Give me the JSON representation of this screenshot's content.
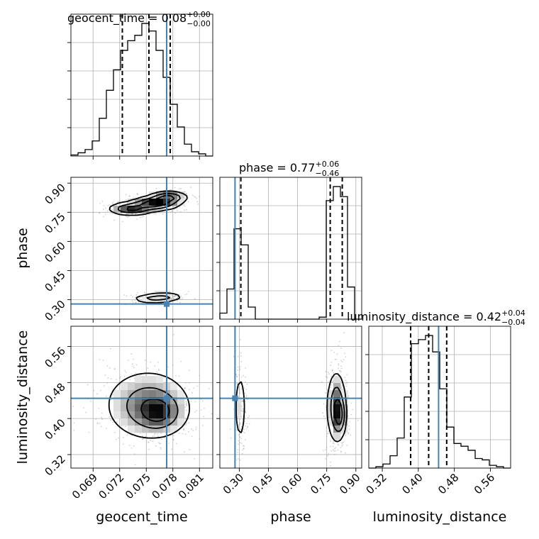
{
  "parameters": [
    "geocent_time",
    "phase",
    "luminosity_distance"
  ],
  "injection": {
    "geocent_time": 0.0773,
    "phase": 0.278,
    "luminosity_distance": 0.445
  },
  "colors": {
    "truth": "#4682b4",
    "density": "#000000",
    "grid": "#b0b0b0"
  },
  "chart_data": {
    "type": "corner",
    "titles": [
      {
        "param": "geocent_time",
        "text": "geocent_time = 0.08",
        "sup": "+0.00",
        "sub": "−0.00"
      },
      {
        "param": "phase",
        "text": "phase = 0.77",
        "sup": "+0.06",
        "sub": "−0.46"
      },
      {
        "param": "luminosity_distance",
        "text": "luminosity_distance = 0.42",
        "sup": "+0.04",
        "sub": "−0.04"
      }
    ],
    "axes": {
      "geocent_time": {
        "label": "geocent_time",
        "range": [
          0.0665,
          0.0825
        ],
        "ticks": [
          0.069,
          0.072,
          0.075,
          0.078,
          0.081
        ],
        "tick_labels": [
          "0.069",
          "0.072",
          "0.075",
          "0.078",
          "0.081"
        ]
      },
      "phase": {
        "label": "phase",
        "range": [
          0.2,
          0.93
        ],
        "ticks": [
          0.3,
          0.45,
          0.6,
          0.75,
          0.9
        ],
        "tick_labels": [
          "0.30",
          "0.45",
          "0.60",
          "0.75",
          "0.90"
        ]
      },
      "luminosity_distance": {
        "label": "luminosity_distance",
        "range": [
          0.29,
          0.605
        ],
        "ticks": [
          0.32,
          0.4,
          0.48,
          0.56
        ],
        "tick_labels": [
          "0.32",
          "0.40",
          "0.48",
          "0.56"
        ]
      }
    },
    "histograms": {
      "geocent_time": {
        "edges": [
          0.0665,
          0.0673,
          0.0681,
          0.0689,
          0.0697,
          0.0705,
          0.0713,
          0.0721,
          0.0729,
          0.0737,
          0.0745,
          0.0753,
          0.0761,
          0.0769,
          0.0777,
          0.0785,
          0.0793,
          0.0801,
          0.0809,
          0.0817,
          0.0825
        ],
        "counts": [
          1,
          3,
          6,
          14,
          35,
          61,
          80,
          98,
          107,
          112,
          123,
          116,
          98,
          73,
          48,
          27,
          11,
          4,
          2,
          0
        ],
        "quantiles": [
          0.0723,
          0.0753,
          0.0777
        ]
      },
      "phase": {
        "edges": [
          0.2,
          0.2365,
          0.273,
          0.3095,
          0.346,
          0.3825,
          0.419,
          0.4555,
          0.492,
          0.5285,
          0.565,
          0.6015,
          0.638,
          0.6745,
          0.711,
          0.7475,
          0.784,
          0.8205,
          0.857,
          0.8935,
          0.93
        ],
        "counts": [
          3,
          15,
          45,
          37,
          6,
          0,
          0,
          0,
          0,
          0,
          0,
          0,
          0,
          0,
          1,
          59,
          66,
          61,
          16,
          0
        ],
        "quantiles": [
          0.308,
          0.768,
          0.83
        ]
      },
      "luminosity_distance": {
        "edges": [
          0.29,
          0.30575,
          0.3215,
          0.33725,
          0.353,
          0.36875,
          0.3845,
          0.40025,
          0.416,
          0.43175,
          0.4475,
          0.46325,
          0.479,
          0.49475,
          0.5105,
          0.52625,
          0.542,
          0.55775,
          0.5735,
          0.58925,
          0.605
        ],
        "counts": [
          0,
          1,
          3,
          9,
          22,
          52,
          91,
          94,
          97,
          85,
          58,
          30,
          18,
          16,
          13,
          7,
          6,
          2,
          1,
          0
        ],
        "quantiles": [
          0.383,
          0.423,
          0.463
        ]
      }
    },
    "density_2d": [
      {
        "x": "geocent_time",
        "y": "phase",
        "blobs": [
          {
            "cx": 0.0733,
            "cy": 0.768,
            "sx": 0.0013,
            "sy": 0.017,
            "w": 1.0
          },
          {
            "cx": 0.076,
            "cy": 0.795,
            "sx": 0.0014,
            "sy": 0.018,
            "w": 1.2
          },
          {
            "cx": 0.0775,
            "cy": 0.827,
            "sx": 0.0011,
            "sy": 0.016,
            "w": 1.0
          },
          {
            "cx": 0.0757,
            "cy": 0.305,
            "sx": 0.0012,
            "sy": 0.012,
            "w": 0.55
          },
          {
            "cx": 0.0772,
            "cy": 0.315,
            "sx": 0.0011,
            "sy": 0.012,
            "w": 0.45
          }
        ]
      },
      {
        "x": "geocent_time",
        "y": "luminosity_distance",
        "blobs": [
          {
            "cx": 0.0752,
            "cy": 0.43,
            "sx": 0.0025,
            "sy": 0.04,
            "w": 1.0
          },
          {
            "cx": 0.0765,
            "cy": 0.412,
            "sx": 0.0014,
            "sy": 0.022,
            "w": 0.8
          }
        ]
      },
      {
        "x": "phase",
        "y": "luminosity_distance",
        "blobs": [
          {
            "cx": 0.305,
            "cy": 0.425,
            "sx": 0.014,
            "sy": 0.04,
            "w": 0.45
          },
          {
            "cx": 0.8,
            "cy": 0.425,
            "sx": 0.025,
            "sy": 0.04,
            "w": 0.9
          },
          {
            "cx": 0.82,
            "cy": 0.405,
            "sx": 0.015,
            "sy": 0.022,
            "w": 0.6
          }
        ]
      }
    ]
  }
}
